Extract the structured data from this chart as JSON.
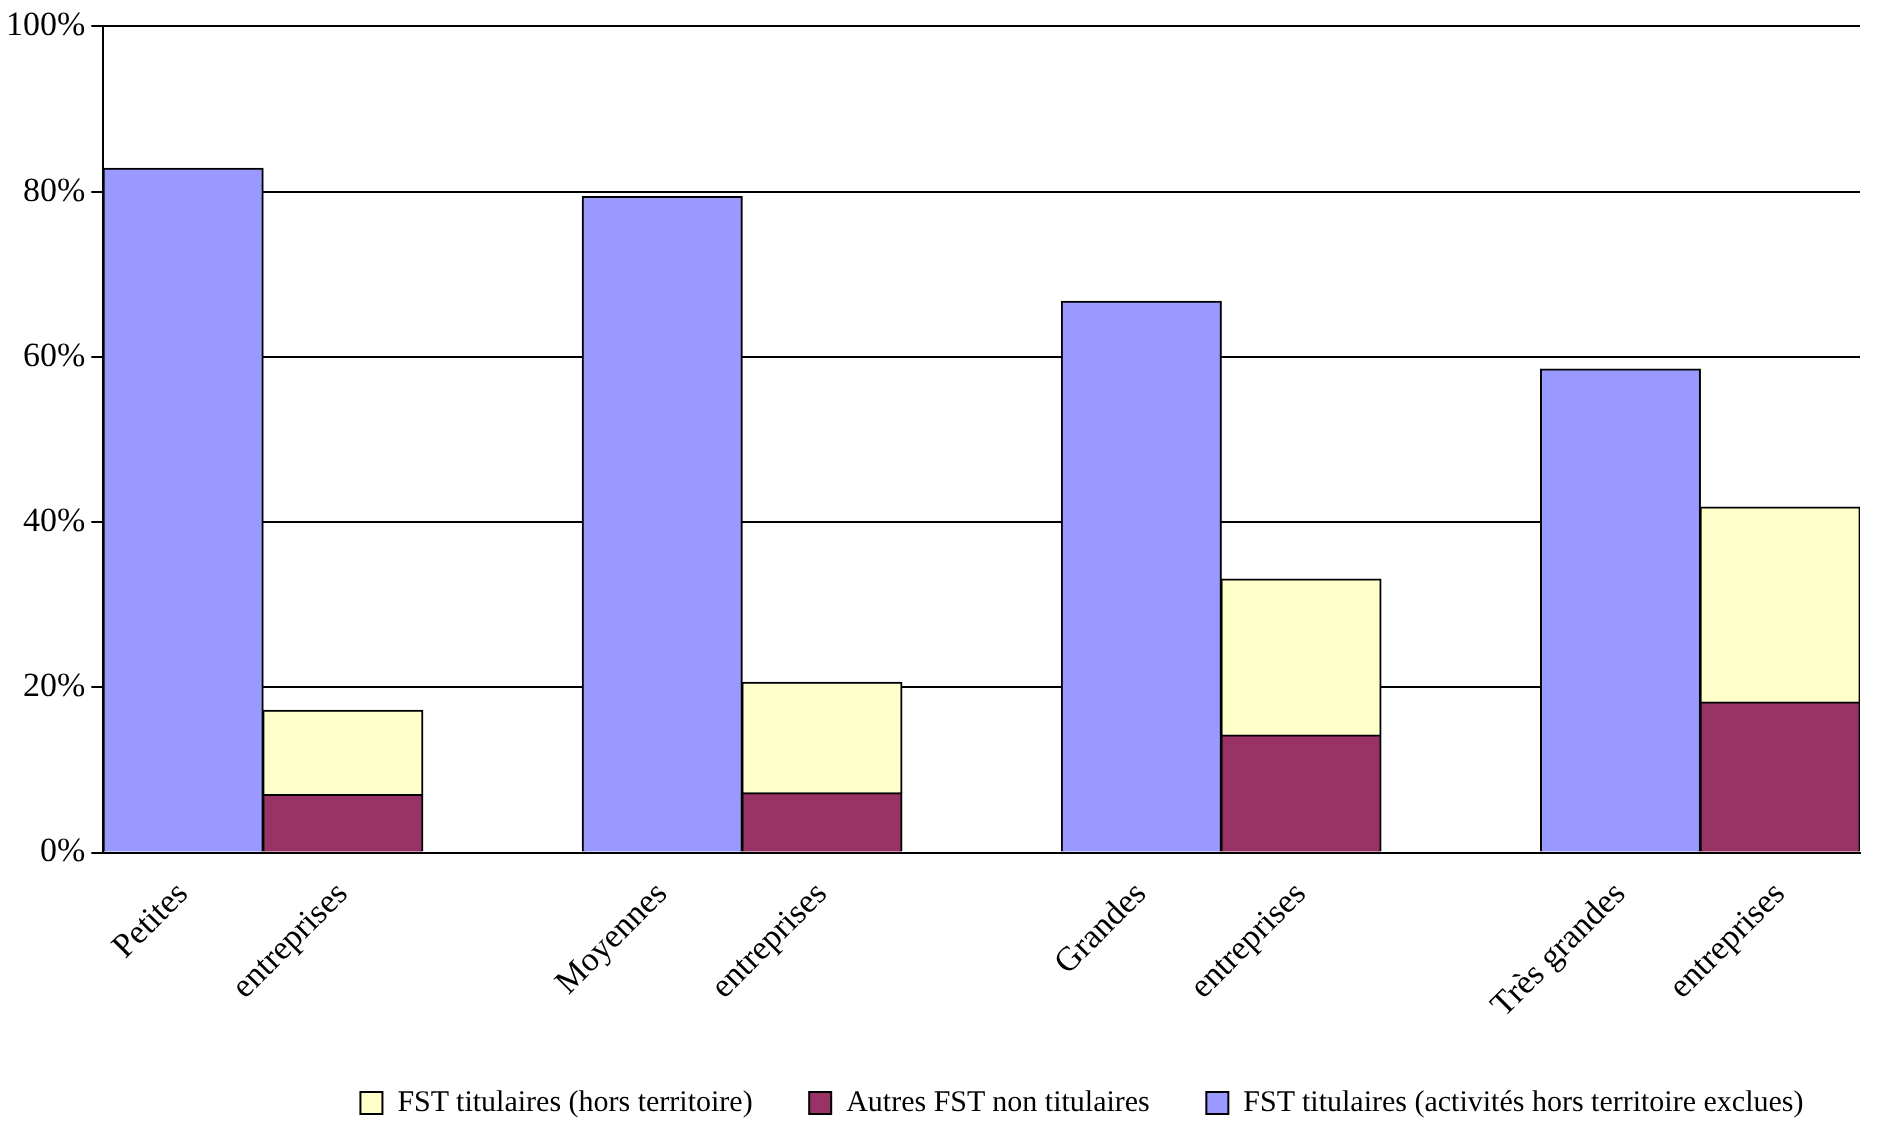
{
  "chart_data": {
    "type": "bar",
    "stacked": true,
    "categories": [
      "Petites",
      "entreprises",
      null,
      "Moyennes",
      "entreprises",
      null,
      "Grandes",
      "entreprises",
      null,
      "Très grandes",
      "entreprises"
    ],
    "series": [
      {
        "name": "Autres FST non titulaires",
        "color": "#993366",
        "values": [
          null,
          7.0,
          null,
          null,
          7.2,
          null,
          null,
          14.2,
          null,
          null,
          18.2
        ]
      },
      {
        "name": "FST titulaires (hors territoire)",
        "color": "#ffffcc",
        "values": [
          null,
          10.2,
          null,
          null,
          13.4,
          null,
          null,
          18.9,
          null,
          null,
          23.6
        ]
      },
      {
        "name": "FST titulaires (activités hors territoire exclues)",
        "color": "#9999ff",
        "values": [
          82.8,
          null,
          null,
          79.4,
          null,
          null,
          66.7,
          null,
          null,
          58.5,
          null
        ]
      }
    ],
    "ylim": [
      0,
      100
    ],
    "yticks": [
      {
        "value": 0,
        "label": "0%"
      },
      {
        "value": 20,
        "label": "20%"
      },
      {
        "value": 40,
        "label": "40%"
      },
      {
        "value": 60,
        "label": "60%"
      },
      {
        "value": 80,
        "label": "80%"
      },
      {
        "value": 100,
        "label": "100%"
      }
    ],
    "grid": "y",
    "legend": "bottom"
  }
}
